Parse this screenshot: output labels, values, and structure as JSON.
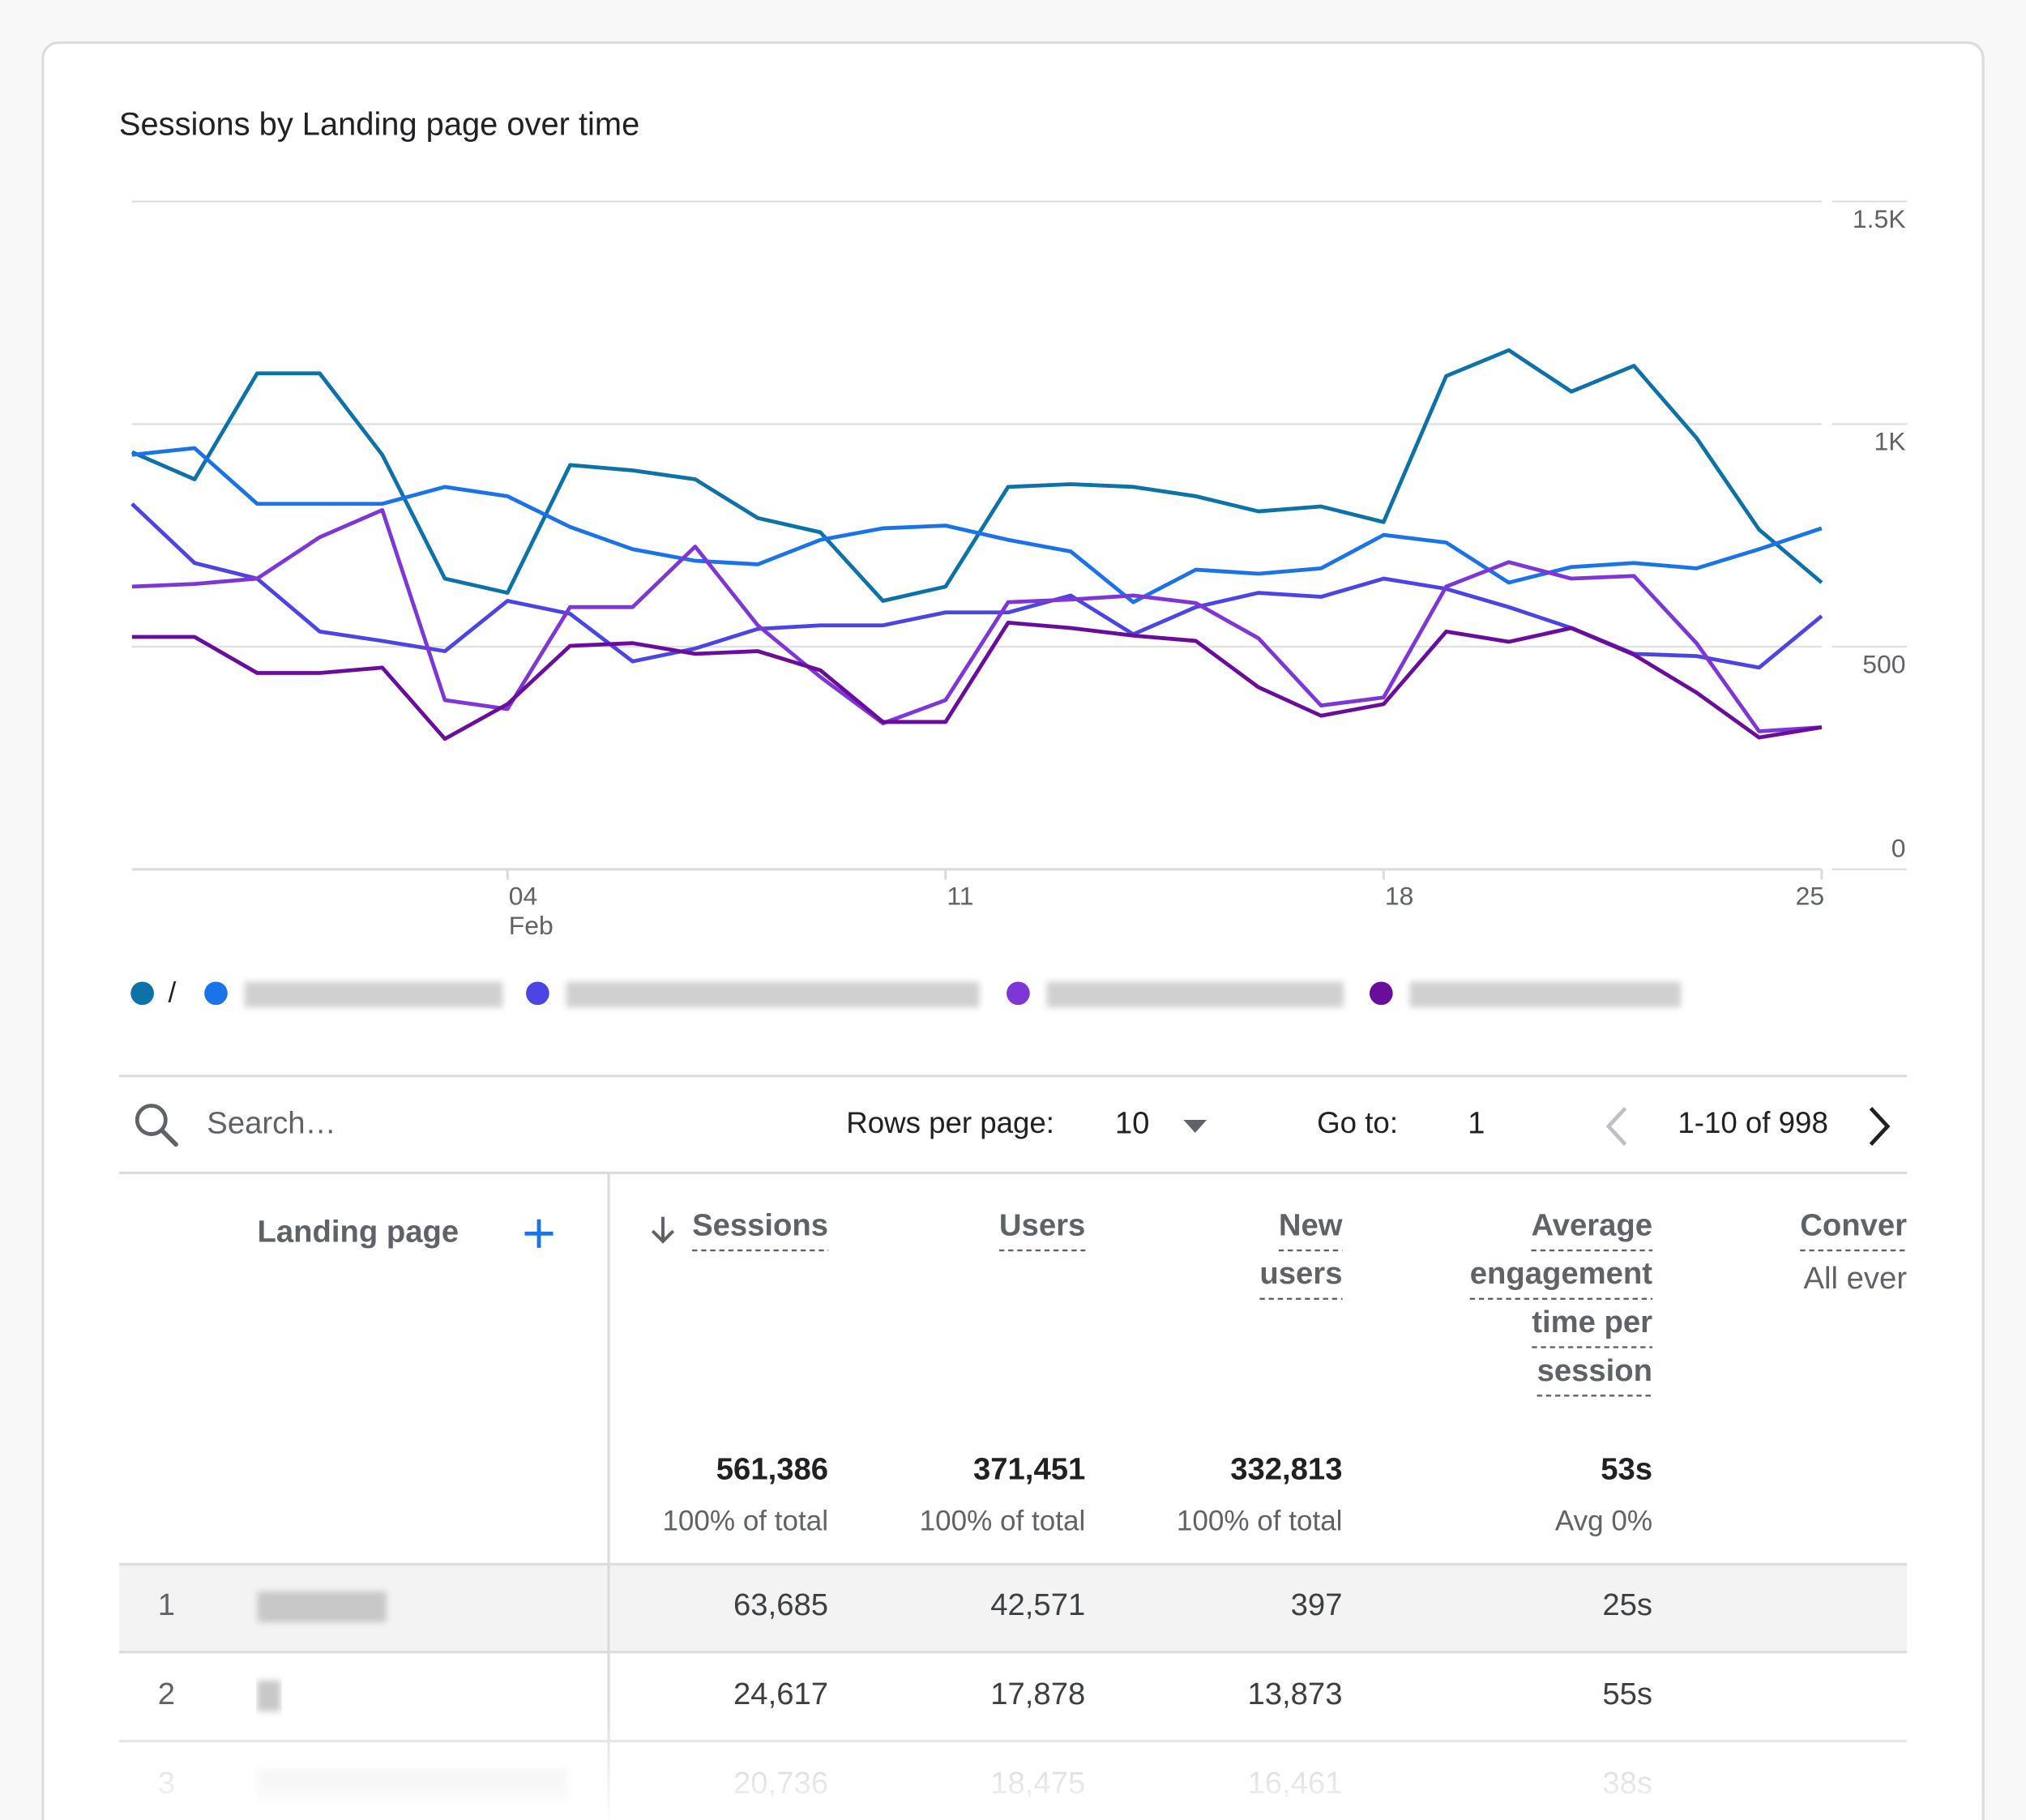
{
  "chart_data": {
    "type": "line",
    "title": "Sessions by Landing page over time",
    "categories": [
      null,
      null,
      null,
      null,
      null,
      null,
      "04",
      null,
      null,
      null,
      null,
      null,
      null,
      "11",
      null,
      null,
      null,
      null,
      null,
      null,
      "18",
      null,
      null,
      null,
      null,
      null,
      null,
      "25"
    ],
    "month_label": "Feb",
    "series": [
      {
        "name": "/",
        "color": "#0d72a7",
        "values": [
          937,
          876,
          1114,
          1114,
          931,
          653,
          621,
          908,
          896,
          876,
          789,
          757,
          603,
          635,
          859,
          865,
          859,
          838,
          804,
          815,
          780,
          1108,
          1166,
          1073,
          1131,
          969,
          763,
          644
        ]
      },
      {
        "name": null,
        "color": "#1a73e8",
        "values": [
          931,
          946,
          821,
          821,
          821,
          859,
          838,
          769,
          719,
          693,
          685,
          740,
          766,
          772,
          740,
          714,
          600,
          673,
          664,
          676,
          751,
          734,
          644,
          679,
          688,
          676,
          719,
          766
        ]
      },
      {
        "name": null,
        "color": "#4b45e6",
        "values": [
          821,
          688,
          653,
          534,
          513,
          490,
          603,
          574,
          467,
          496,
          540,
          548,
          548,
          577,
          577,
          615,
          528,
          589,
          621,
          612,
          653,
          630,
          589,
          542,
          484,
          479,
          453,
          569
        ]
      },
      {
        "name": null,
        "color": "#7e36d6",
        "values": [
          635,
          641,
          653,
          746,
          807,
          380,
          360,
          589,
          589,
          725,
          548,
          432,
          328,
          380,
          600,
          606,
          615,
          598,
          519,
          368,
          386,
          635,
          690,
          653,
          659,
          508,
          310,
          319
        ]
      },
      {
        "name": null,
        "color": "#6a0c9c",
        "values": [
          522,
          522,
          441,
          441,
          453,
          293,
          371,
          502,
          508,
          484,
          490,
          447,
          331,
          331,
          554,
          542,
          525,
          513,
          409,
          345,
          371,
          534,
          511,
          542,
          482,
          397,
          296,
          319
        ]
      }
    ],
    "ylim": [
      0,
      1500
    ],
    "yticks": [
      0,
      500,
      {
        "value": 1000,
        "label": "1K"
      },
      {
        "value": 1500,
        "label": "1.5K"
      }
    ],
    "grid": true
  },
  "toolbar": {
    "search_placeholder": "Search…",
    "rows_per_page_label": "Rows per page:",
    "rows_per_page": "10",
    "go_to_label": "Go to:",
    "go_to": "1",
    "range": "1-10 of 998"
  },
  "table": {
    "columns": [
      {
        "header": [
          "Landing page"
        ]
      },
      {
        "header": [
          "Sessions"
        ],
        "total": "561,386",
        "total_note": "100% of total"
      },
      {
        "header": [
          "Users"
        ],
        "total": "371,451",
        "total_note": "100% of total"
      },
      {
        "header": [
          "New",
          "users"
        ],
        "total": "332,813",
        "total_note": "100% of total"
      },
      {
        "header": [
          "Average",
          "engagement",
          "time per",
          "session"
        ],
        "total": "53s",
        "total_note": "Avg 0%"
      },
      {
        "header": [
          "Conver"
        ],
        "subheader": "All ever"
      }
    ],
    "rows": [
      {
        "rank": "1",
        "values": [
          "63,685",
          "42,571",
          "397",
          "25s"
        ]
      },
      {
        "rank": "2",
        "values": [
          "24,617",
          "17,878",
          "13,873",
          "55s"
        ]
      },
      {
        "rank": "3",
        "values": [
          "20,736",
          "18,475",
          "16,461",
          "38s"
        ]
      }
    ]
  }
}
